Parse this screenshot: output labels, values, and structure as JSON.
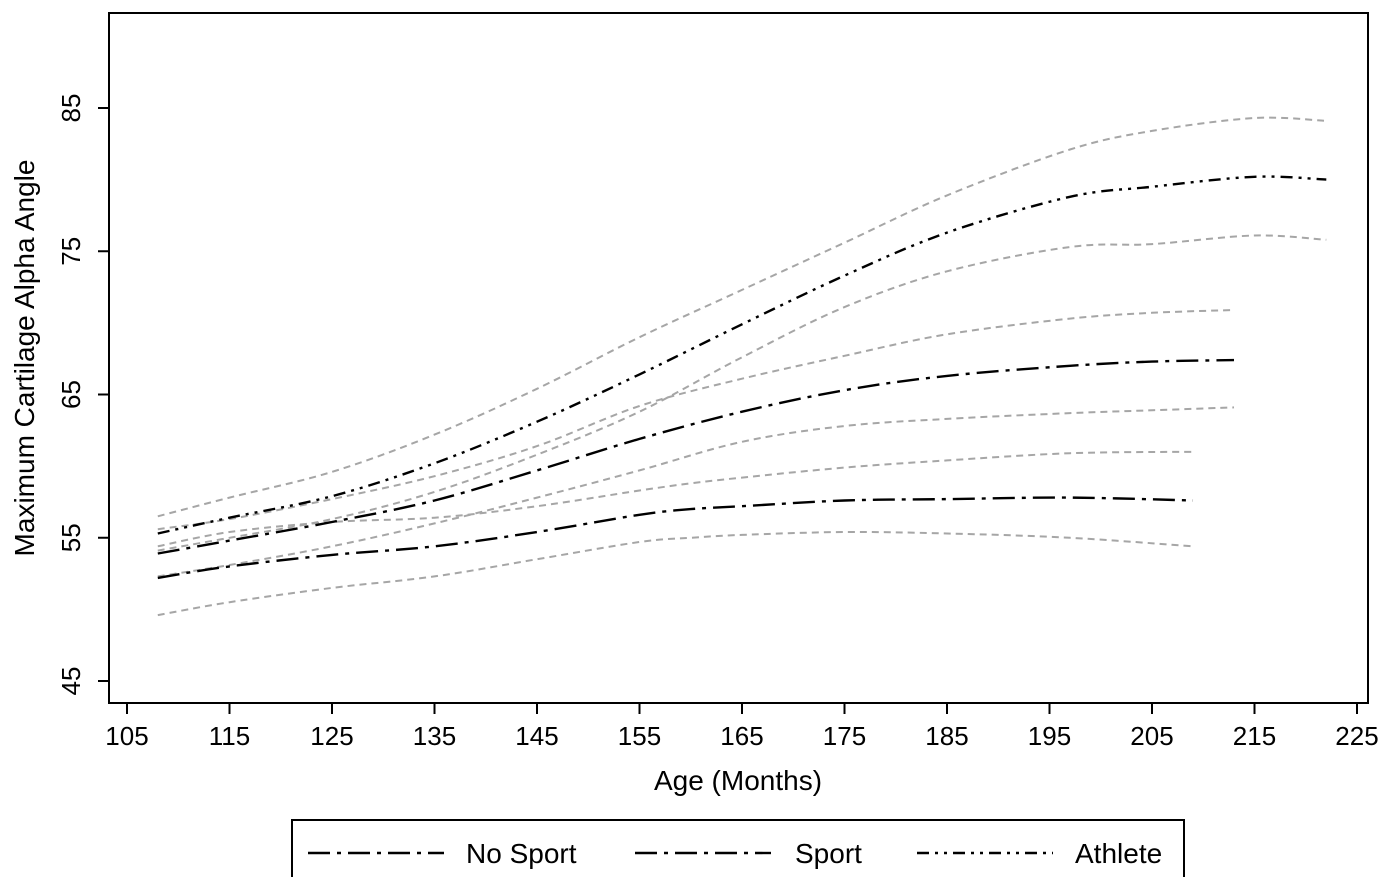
{
  "chart_data": {
    "type": "line",
    "title": "",
    "xlabel": "Age (Months)",
    "ylabel": "Maximum Cartilage Alpha Angle",
    "xlim": [
      105,
      228
    ],
    "ylim": [
      43.5,
      91
    ],
    "xticks": [
      105,
      115,
      125,
      135,
      145,
      155,
      165,
      175,
      185,
      195,
      205,
      215,
      225
    ],
    "yticks": [
      45,
      55,
      65,
      75,
      85
    ],
    "grid": false,
    "legend_position": "bottom",
    "series": [
      {
        "name": "No Sport",
        "dash": "long-dash-dot",
        "x": [
          108,
          115,
          125,
          135,
          145,
          155,
          160,
          165,
          175,
          185,
          197,
          209
        ],
        "y": [
          52.2,
          53.0,
          53.8,
          54.4,
          55.4,
          56.6,
          57.0,
          57.2,
          57.6,
          57.7,
          57.8,
          57.6
        ],
        "ci_lower": [
          49.6,
          50.5,
          51.5,
          52.3,
          53.5,
          54.7,
          55.0,
          55.2,
          55.4,
          55.3,
          55.0,
          54.4
        ],
        "ci_upper": [
          54.4,
          55.4,
          56.1,
          56.4,
          57.2,
          58.3,
          58.8,
          59.2,
          59.9,
          60.4,
          60.9,
          61.0
        ]
      },
      {
        "name": "Sport",
        "dash": "long-dash-dot",
        "x": [
          108,
          115,
          125,
          135,
          145,
          155,
          165,
          175,
          185,
          197,
          205,
          213
        ],
        "y": [
          53.9,
          54.8,
          56.1,
          57.6,
          59.7,
          61.9,
          63.8,
          65.3,
          66.3,
          67.0,
          67.3,
          67.4
        ],
        "ci_lower": [
          52.3,
          53.1,
          54.4,
          56.0,
          57.8,
          59.7,
          61.7,
          62.8,
          63.3,
          63.7,
          63.9,
          64.1
        ],
        "ci_upper": [
          55.6,
          56.3,
          57.7,
          59.3,
          61.4,
          64.2,
          66.1,
          67.7,
          69.2,
          70.3,
          70.7,
          70.9
        ]
      },
      {
        "name": "Athlete",
        "dash": "dash-dot-dot",
        "x": [
          108,
          115,
          125,
          135,
          145,
          155,
          165,
          175,
          185,
          197,
          205,
          215,
          222
        ],
        "y": [
          55.3,
          56.4,
          57.9,
          60.2,
          63.1,
          66.4,
          69.9,
          73.3,
          76.3,
          78.8,
          79.5,
          80.2,
          80.0
        ],
        "ci_lower": [
          54.1,
          55.0,
          56.3,
          58.2,
          60.8,
          63.8,
          67.6,
          71.1,
          73.6,
          75.3,
          75.5,
          76.1,
          75.8
        ],
        "ci_upper": [
          56.5,
          57.8,
          59.6,
          62.2,
          65.4,
          69.0,
          72.3,
          75.6,
          78.9,
          82.1,
          83.4,
          84.3,
          84.1
        ]
      }
    ],
    "ci_color": "#a6a6a6",
    "line_color": "#000000"
  }
}
